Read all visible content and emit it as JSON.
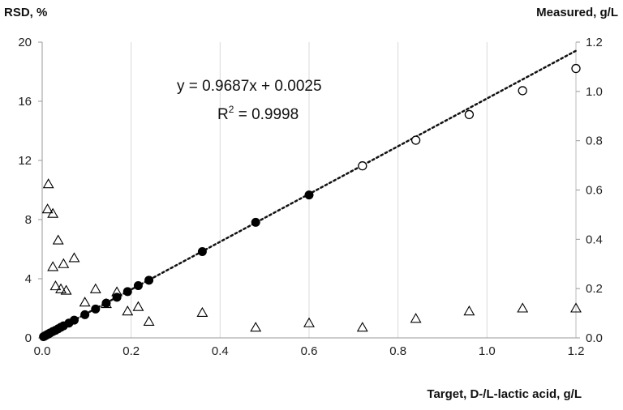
{
  "chart_data": {
    "type": "scatter",
    "left_axis_label": "RSD, %",
    "right_axis_label": "Measured, g/L",
    "xlabel": "Target, D-/L-lactic acid, g/L",
    "xlim": [
      0,
      1.2
    ],
    "ylim_left": [
      0,
      20
    ],
    "ylim_right": [
      0,
      1.2
    ],
    "x_ticks": [
      "0.0",
      "0.2",
      "0.4",
      "0.6",
      "0.8",
      "1.0",
      "1.2"
    ],
    "left_ticks": [
      "0",
      "4",
      "8",
      "12",
      "16",
      "20"
    ],
    "right_ticks": [
      "0.0",
      "0.2",
      "0.4",
      "0.6",
      "0.8",
      "1.0",
      "1.2"
    ],
    "grid": "vertical",
    "annotation": {
      "equation": "y = 0.9687x + 0.0025",
      "r2_prefix": "R",
      "r2_sup": "2",
      "r2_suffix": " = 0.9998"
    },
    "trendline": {
      "slope": 0.9687,
      "intercept": 0.0025,
      "axis": "right",
      "style": "dotted"
    },
    "series": [
      {
        "marker": "filled-circle",
        "axis": "right",
        "points": [
          [
            0.003,
            0.005
          ],
          [
            0.006,
            0.008
          ],
          [
            0.009,
            0.011
          ],
          [
            0.012,
            0.014
          ],
          [
            0.015,
            0.017
          ],
          [
            0.018,
            0.02
          ],
          [
            0.024,
            0.026
          ],
          [
            0.03,
            0.031
          ],
          [
            0.036,
            0.037
          ],
          [
            0.042,
            0.043
          ],
          [
            0.048,
            0.049
          ],
          [
            0.06,
            0.06
          ],
          [
            0.072,
            0.072
          ],
          [
            0.096,
            0.094
          ],
          [
            0.12,
            0.117
          ],
          [
            0.144,
            0.141
          ],
          [
            0.168,
            0.165
          ],
          [
            0.192,
            0.188
          ],
          [
            0.216,
            0.212
          ],
          [
            0.24,
            0.234
          ],
          [
            0.36,
            0.35
          ],
          [
            0.48,
            0.469
          ],
          [
            0.6,
            0.58
          ]
        ]
      },
      {
        "marker": "open-circle",
        "axis": "right",
        "points": [
          [
            0.72,
            0.698
          ],
          [
            0.84,
            0.802
          ],
          [
            0.96,
            0.906
          ],
          [
            1.08,
            1.003
          ],
          [
            1.2,
            1.093
          ]
        ]
      },
      {
        "marker": "open-triangle",
        "axis": "left",
        "points": [
          [
            0.014,
            10.4
          ],
          [
            0.012,
            8.7
          ],
          [
            0.024,
            8.4
          ],
          [
            0.036,
            6.6
          ],
          [
            0.048,
            5.0
          ],
          [
            0.024,
            4.8
          ],
          [
            0.072,
            5.4
          ],
          [
            0.03,
            3.5
          ],
          [
            0.042,
            3.3
          ],
          [
            0.054,
            3.2
          ],
          [
            0.096,
            2.4
          ],
          [
            0.12,
            3.3
          ],
          [
            0.144,
            2.3
          ],
          [
            0.168,
            3.1
          ],
          [
            0.192,
            1.8
          ],
          [
            0.216,
            2.1
          ],
          [
            0.24,
            1.1
          ],
          [
            0.36,
            1.7
          ],
          [
            0.48,
            0.7
          ],
          [
            0.6,
            1.0
          ],
          [
            0.72,
            0.7
          ],
          [
            0.84,
            1.3
          ],
          [
            0.96,
            1.8
          ],
          [
            1.08,
            2.0
          ],
          [
            1.2,
            2.0
          ]
        ]
      }
    ]
  }
}
